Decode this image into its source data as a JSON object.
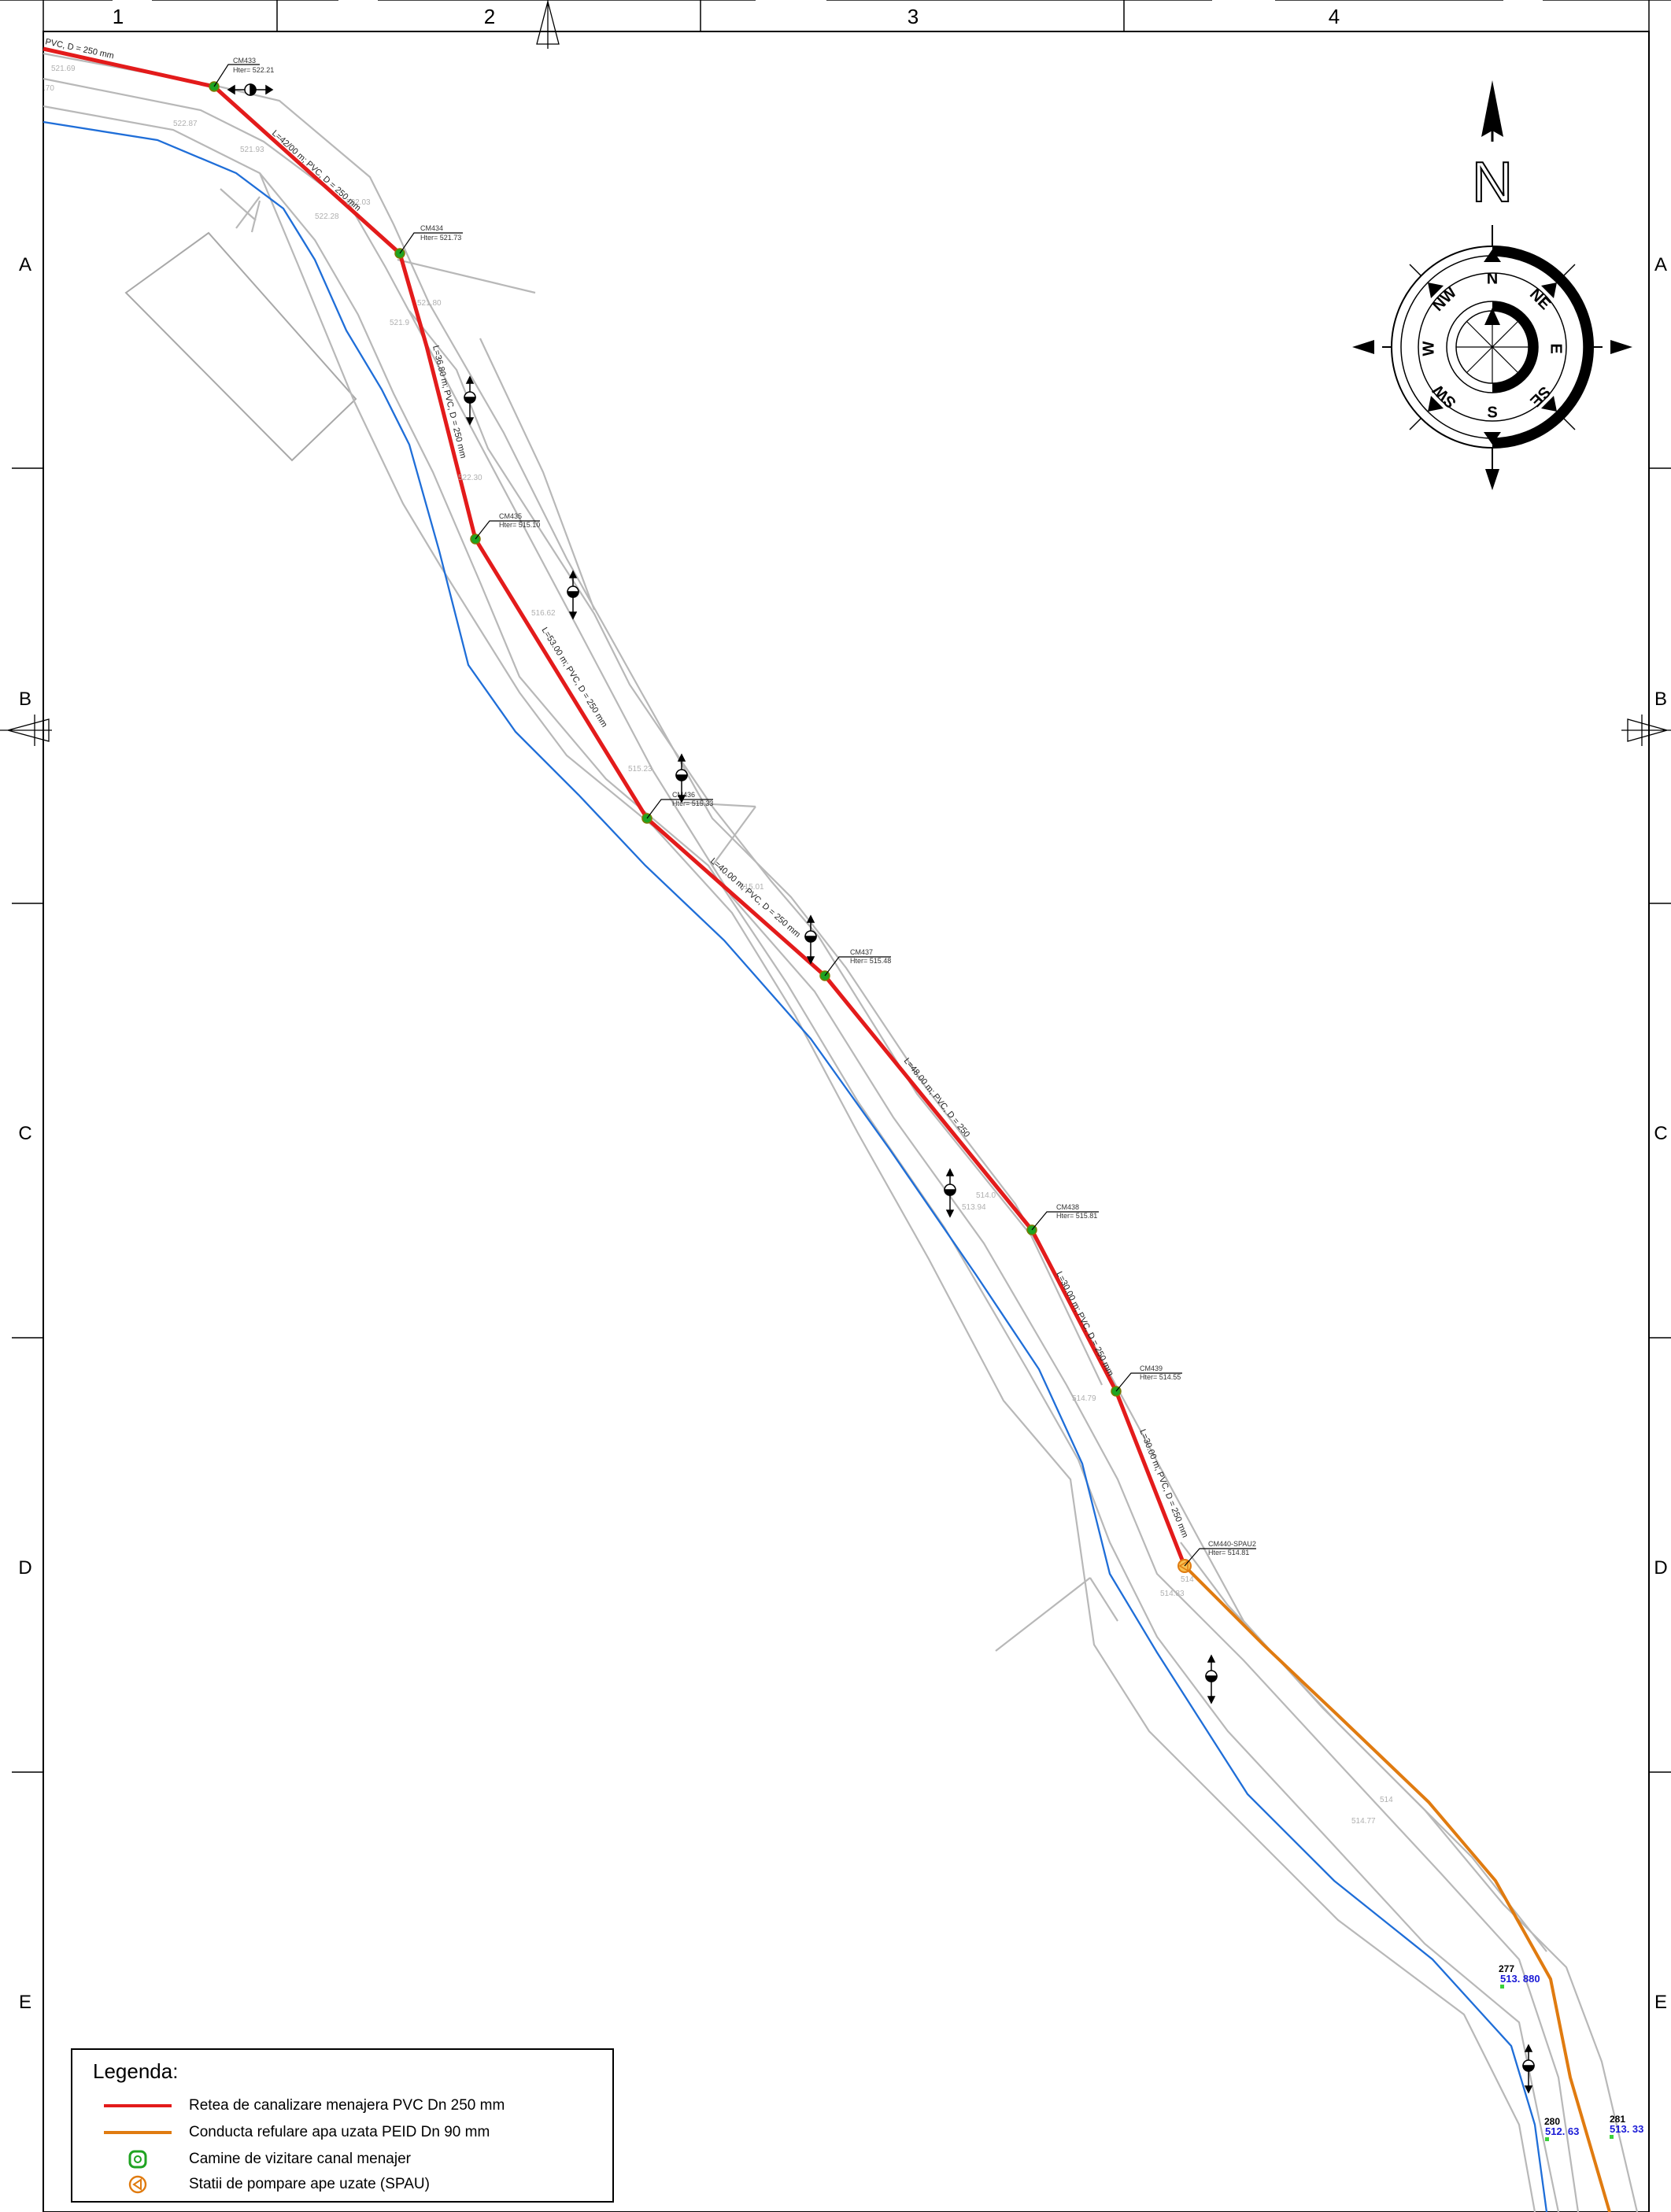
{
  "sheet": {
    "columns": [
      "1",
      "2",
      "3",
      "4"
    ],
    "rows": [
      "A",
      "B",
      "C",
      "D",
      "E"
    ]
  },
  "compass": {
    "north_big": "N",
    "points": [
      "N",
      "NE",
      "E",
      "SE",
      "S",
      "SW",
      "W",
      "NW"
    ]
  },
  "sewer": {
    "line_color": "#e31b1b",
    "manholes": [
      {
        "id": "CM433",
        "h": "Hter= 522.21"
      },
      {
        "id": "CM434",
        "h": "Hter= 521.73"
      },
      {
        "id": "CM435",
        "h": "Hter= 515.10"
      },
      {
        "id": "CM436",
        "h": "Hter= 515.33"
      },
      {
        "id": "CM437",
        "h": "Hter= 515.48"
      },
      {
        "id": "CM438",
        "h": "Hter= 515.81"
      },
      {
        "id": "CM439",
        "h": "Hter= 514.55"
      },
      {
        "id": "CM440-SPAU2",
        "h": "Hter= 514.81"
      }
    ],
    "segments": [
      "PVC, D = 250 mm",
      "L=42/00 m; PVC, D = 250 mm",
      "L=36.80 m; PVC, D = 250 mm",
      "L=53.00 m; PVC, D = 250 mm",
      "L=40.00 m; PVC, D = 250 mm",
      "L=48.00 m; PVC, D = 250",
      "L=30.00 m; PVC, D = 250 mm",
      "L=30.00 m; PVC, D = 250 mm"
    ]
  },
  "elevations": [
    "521.69",
    ".70",
    "522.87",
    "521.93",
    "522.03",
    "522.28",
    "521.80",
    "521.9",
    "522.30",
    "516.62",
    "515.23",
    "515.01",
    "513.94",
    "514.0",
    "514.79",
    "514.83",
    "514",
    "514.77",
    "514"
  ],
  "survey_points": [
    {
      "id": "277",
      "el": "513. 880"
    },
    {
      "id": "280",
      "el": "512. 63"
    },
    {
      "id": "281",
      "el": "513. 33"
    }
  ],
  "legend": {
    "title": "Legenda:",
    "items": [
      {
        "label": "Retea de canalizare menajera PVC Dn 250 mm",
        "color": "#e31b1b",
        "kind": "line"
      },
      {
        "label": "Conducta refulare apa uzata PEID Dn 90 mm",
        "color": "#e07b10",
        "kind": "line"
      },
      {
        "label": "Camine de vizitare canal menajer",
        "color": "#1fa321",
        "kind": "manhole"
      },
      {
        "label": "Statii de pompare ape uzate (SPAU)",
        "color": "#e07b10",
        "kind": "pump"
      }
    ]
  }
}
